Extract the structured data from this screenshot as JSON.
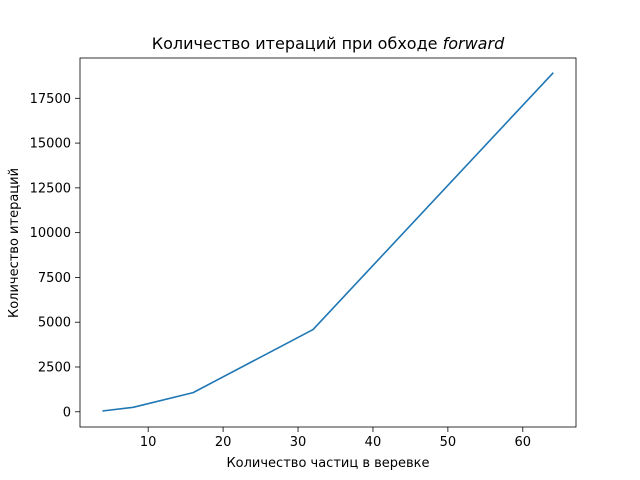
{
  "chart_data": {
    "type": "line",
    "title": "Количество итераций при обходе",
    "title_emphasis": "forward",
    "xlabel": "Количество частиц в веревке",
    "ylabel": "Количество итераций",
    "xlim": [
      0.9,
      67.1
    ],
    "ylim": [
      -850,
      19750
    ],
    "xticks": [
      10,
      20,
      30,
      40,
      50,
      60
    ],
    "yticks": [
      0,
      2500,
      5000,
      7500,
      10000,
      12500,
      15000,
      17500
    ],
    "grid": false,
    "series": [
      {
        "color": "#1f77b4",
        "x": [
          4,
          8,
          16,
          32,
          64
        ],
        "y": [
          50,
          250,
          1070,
          4590,
          18900
        ]
      }
    ]
  }
}
